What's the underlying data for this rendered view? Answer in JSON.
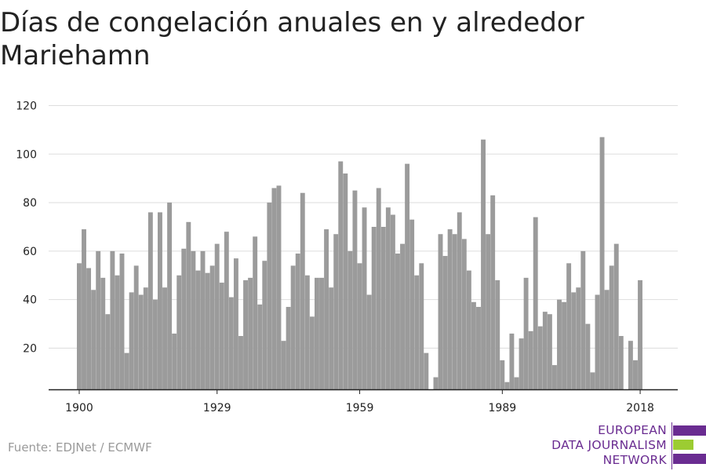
{
  "title": "Días de congelación anuales en y alrededor Mariehamn",
  "source": "Fuente: EDJNet / ECMWF",
  "logo": {
    "line1": "EUROPEAN",
    "line2": "DATA JOURNALISM",
    "line3": "NETWORK",
    "colors": [
      "#6a2c91",
      "#9ccc32",
      "#6a2c91"
    ]
  },
  "colors": {
    "bar": "#9b9b9b",
    "grid": "#dddddd",
    "axis": "#222222"
  },
  "chart_data": {
    "type": "bar",
    "title": "Días de congelación anuales en y alrededor Mariehamn",
    "xlabel": "",
    "ylabel": "",
    "x_ticks": [
      1900,
      1929,
      1959,
      1989,
      2018
    ],
    "y_ticks": [
      20,
      40,
      60,
      80,
      100,
      120
    ],
    "ylim": [
      3,
      120
    ],
    "grid": true,
    "series": [
      {
        "x": [
          1900,
          1901,
          1902,
          1903,
          1904,
          1905,
          1906,
          1907,
          1908,
          1909,
          1910,
          1911,
          1912,
          1913,
          1914,
          1915,
          1916,
          1917,
          1918,
          1919,
          1920,
          1921,
          1922,
          1923,
          1924,
          1925,
          1926,
          1927,
          1928,
          1929,
          1930,
          1931,
          1932,
          1933,
          1934,
          1935,
          1936,
          1937,
          1938,
          1939,
          1940,
          1941,
          1942,
          1943,
          1944,
          1945,
          1946,
          1947,
          1948,
          1949,
          1950,
          1951,
          1952,
          1953,
          1954,
          1955,
          1956,
          1957,
          1958,
          1959,
          1960,
          1961,
          1962,
          1963,
          1964,
          1965,
          1966,
          1967,
          1968,
          1969,
          1970,
          1971,
          1972,
          1973,
          1974,
          1975,
          1976,
          1977,
          1978,
          1979,
          1980,
          1981,
          1982,
          1983,
          1984,
          1985,
          1986,
          1987,
          1988,
          1989,
          1990,
          1991,
          1992,
          1993,
          1994,
          1995,
          1996,
          1997,
          1998,
          1999,
          2000,
          2001,
          2002,
          2003,
          2004,
          2005,
          2006,
          2007,
          2008,
          2009,
          2010,
          2011,
          2012,
          2013,
          2014,
          2015,
          2016,
          2017,
          2018
        ],
        "values": [
          55,
          69,
          53,
          44,
          60,
          49,
          34,
          60,
          50,
          59,
          18,
          43,
          54,
          42,
          45,
          76,
          40,
          76,
          45,
          80,
          26,
          50,
          61,
          72,
          60,
          52,
          60,
          51,
          54,
          63,
          47,
          68,
          41,
          57,
          25,
          48,
          49,
          66,
          38,
          56,
          80,
          86,
          87,
          23,
          37,
          54,
          59,
          84,
          50,
          33,
          49,
          49,
          69,
          45,
          67,
          97,
          92,
          60,
          85,
          55,
          78,
          42,
          70,
          86,
          70,
          78,
          75,
          59,
          63,
          96,
          73,
          50,
          55,
          18,
          3,
          8,
          67,
          58,
          69,
          67,
          76,
          65,
          52,
          39,
          37,
          106,
          67,
          83,
          48,
          15,
          6,
          26,
          8,
          24,
          49,
          27,
          74,
          29,
          35,
          34,
          13,
          40,
          39,
          55,
          43,
          45,
          60,
          30,
          10,
          42,
          107,
          44,
          54,
          63,
          25,
          3,
          23,
          15,
          48
        ]
      }
    ]
  }
}
